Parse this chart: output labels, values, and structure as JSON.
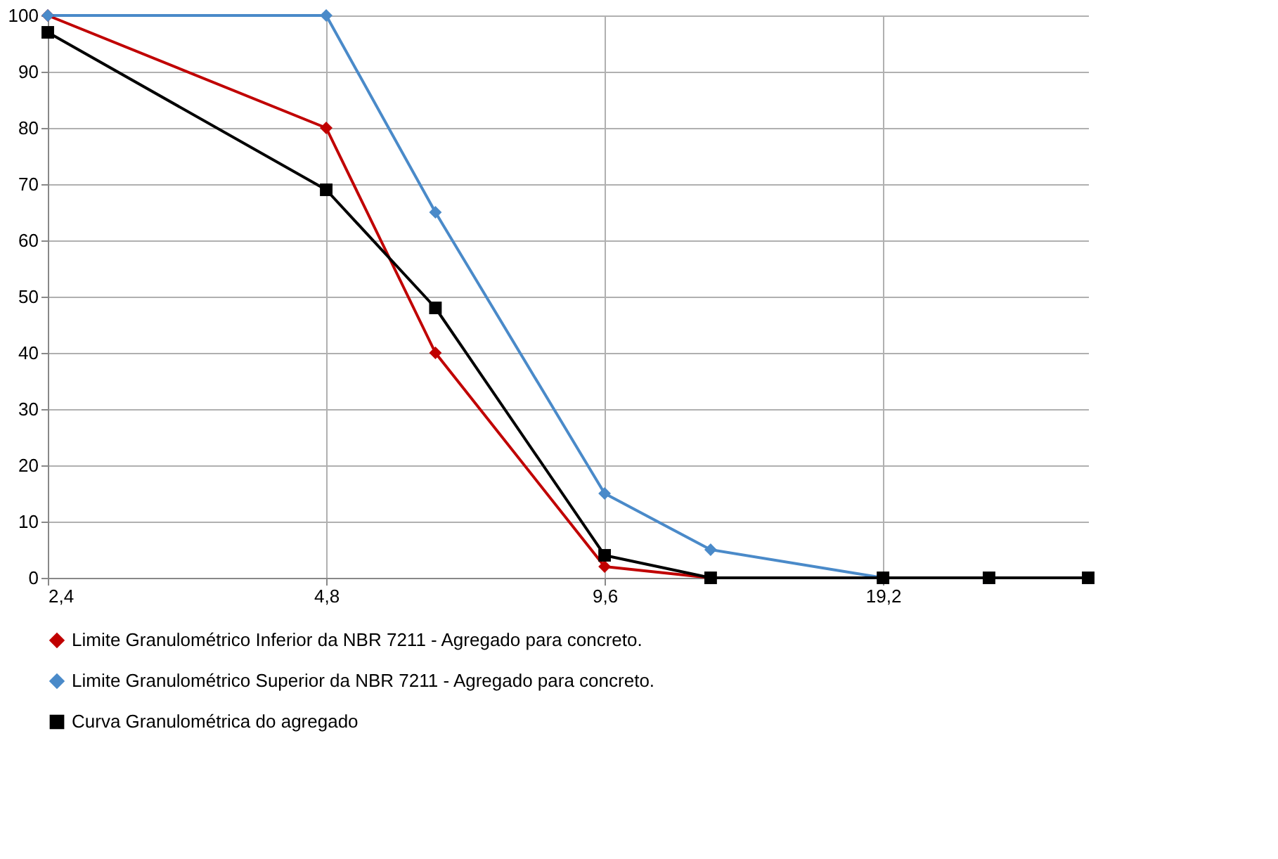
{
  "chart_data": {
    "type": "line",
    "x": [
      2.4,
      4.8,
      6.3,
      9.6,
      12.5,
      19.2,
      25,
      32
    ],
    "log": "x",
    "xlim": [
      2.4,
      32
    ],
    "xticks": [
      {
        "value": 2.4,
        "label": "2,4"
      },
      {
        "value": 4.8,
        "label": "4,8"
      },
      {
        "value": 9.6,
        "label": "9,6"
      },
      {
        "value": 19.2,
        "label": "19,2"
      }
    ],
    "ylim": [
      0,
      100
    ],
    "yticks": [
      0,
      10,
      20,
      30,
      40,
      50,
      60,
      70,
      80,
      90,
      100
    ],
    "grid": true,
    "legend": "bottom",
    "line_style": "solid",
    "series": [
      {
        "name": "Limite Granulométrico Inferior da NBR 7211 - Agregado para concreto.",
        "color": "#c00000",
        "marker": "diamond",
        "values": [
          100,
          80,
          40,
          2,
          0,
          null,
          null,
          null
        ]
      },
      {
        "name": "Limite Granulométrico Superior da NBR 7211 - Agregado para concreto.",
        "color": "#4a8ac9",
        "marker": "diamond",
        "values": [
          100,
          100,
          65,
          15,
          5,
          0,
          0,
          0
        ]
      },
      {
        "name": "Curva Granulométrica do agregado",
        "color": "#000000",
        "marker": "square",
        "values": [
          97,
          69,
          48,
          4,
          0,
          0,
          0,
          0
        ]
      }
    ]
  }
}
